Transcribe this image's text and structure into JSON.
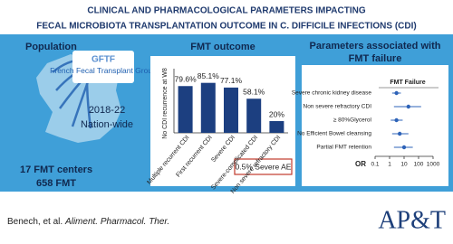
{
  "header": {
    "title_line1": "CLINICAL AND PHARMACOLOGICAL PARAMETERS IMPACTING",
    "title_line2": "FECAL MICROBIOTA TRANSPLANTATION OUTCOME IN C. DIFFICILE INFECTIONS (CDI)"
  },
  "population": {
    "title": "Population",
    "logo_abbr": "GFTF",
    "logo_name": "French Fecal Transplant Group",
    "period": "2018-22",
    "scope": "Nation-wide",
    "centers": "17 FMT centers",
    "patients": "658 FMT"
  },
  "outcome": {
    "title": "FMT outcome",
    "adverse_events": "0.5% Severe AE"
  },
  "parameters": {
    "title_line1": "Parameters associated with",
    "title_line2": "FMT failure"
  },
  "citation": {
    "authors": "Benech, et al.",
    "journal": "Aliment. Pharmacol. Ther."
  },
  "journal_logo": "AP&T",
  "chart_data": [
    {
      "type": "bar",
      "y_label": "No CDI recurrence at W8",
      "categories": [
        "Multiple recurrent CDI",
        "First recurrent CDI",
        "Severe CDI",
        "Severe-complicated CDI",
        "Non severe refractory CDI"
      ],
      "values": [
        79.6,
        85.1,
        77.1,
        58.1,
        20
      ],
      "value_labels": [
        "79.6%",
        "85.1%",
        "77.1%",
        "58.1%",
        "20%"
      ],
      "color": "#1c3f80",
      "ylim": [
        0,
        100
      ]
    },
    {
      "type": "forest",
      "title": "FMT Failure",
      "x_label": "OR",
      "categories": [
        "Severe chronic kidney disease",
        "Non severe refractory CDI",
        "≥ 80%Glycerol",
        "No Efficient Bowel cleansing",
        "Partial FMT retention"
      ],
      "values": [
        3,
        20,
        3,
        5,
        10
      ],
      "lower": [
        1.5,
        2,
        1.2,
        1.5,
        2
      ],
      "upper": [
        6,
        150,
        8,
        20,
        40
      ],
      "color": "#2e63b8",
      "xlim": [
        0.1,
        1000
      ],
      "xticks": [
        0.1,
        1,
        10,
        100,
        1000
      ],
      "log_x": true
    }
  ]
}
